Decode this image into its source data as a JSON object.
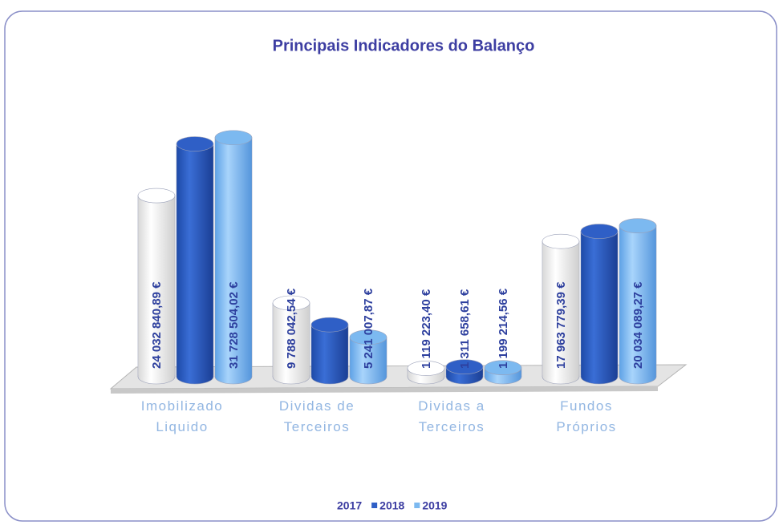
{
  "chart_data": {
    "type": "bar",
    "title": "Principais Indicadores do Balanço",
    "categories": [
      "Imobilizado Liquido",
      "Dividas de Terceiros",
      "Dividas a Terceiros",
      "Fundos Próprios"
    ],
    "series": [
      {
        "name": "2017",
        "color": "#ffffff",
        "values": [
          24032840.89,
          9788042.54,
          1119223.4,
          17963779.39
        ],
        "value_labels": [
          "24 032 840,89 €",
          "9 788 042,54 €",
          "1 119 223,40 €",
          "17 963 779,39 €"
        ]
      },
      {
        "name": "2018",
        "color": "#2f5fc6",
        "values": [
          30900000,
          6900000,
          1311658.61,
          19300000
        ],
        "value_labels": [
          null,
          null,
          "1 311 658,61 €",
          null
        ]
      },
      {
        "name": "2019",
        "color": "#7cb9f0",
        "values": [
          31728504.02,
          5241007.87,
          1199214.56,
          20034089.27
        ],
        "value_labels": [
          "31 728 504,02 €",
          "5 241 007,87 €",
          "1 199 214,56 €",
          "20 034 089,27 €"
        ]
      }
    ],
    "ylim": [
      0,
      35000000
    ],
    "legend": "bottom"
  }
}
